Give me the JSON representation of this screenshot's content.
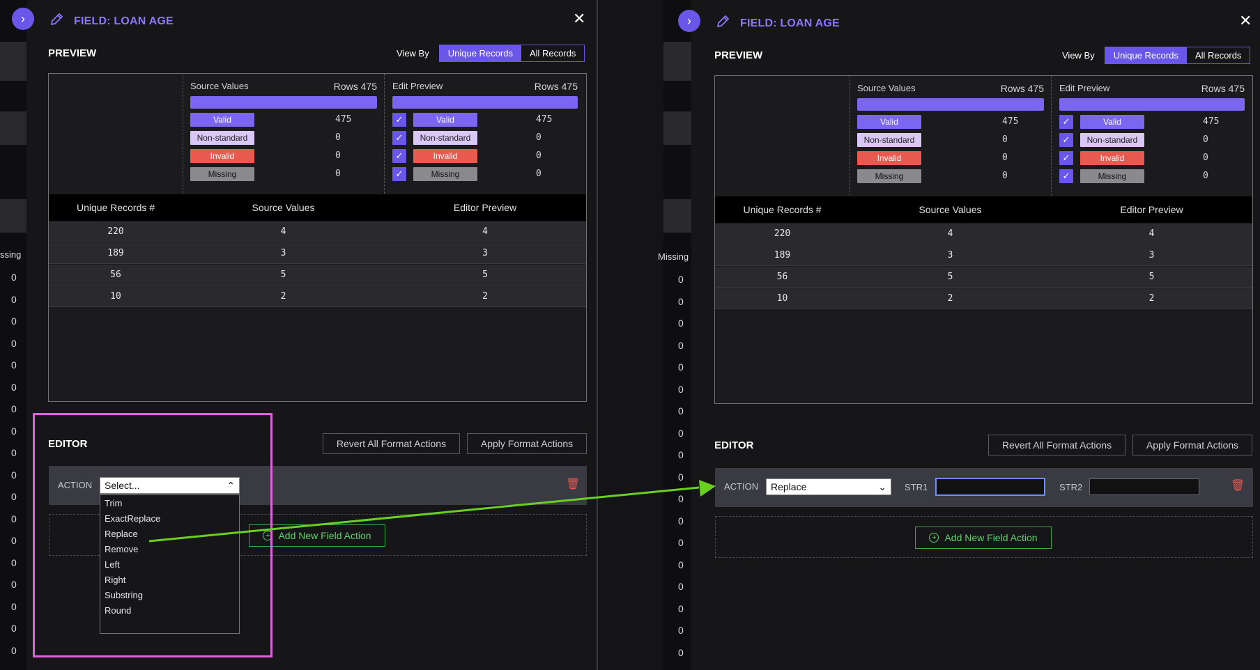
{
  "left": {
    "field_title": "FIELD: LOAN AGE",
    "preview_label": "PREVIEW",
    "view_by_label": "View By",
    "view_unique": "Unique Records",
    "view_all": "All Records",
    "source_label": "Source Values",
    "source_rows": "Rows 475",
    "edit_label": "Edit Preview",
    "edit_rows": "Rows 475",
    "stats": [
      {
        "label": "Valid",
        "count": "475"
      },
      {
        "label": "Non-standard",
        "count": "0"
      },
      {
        "label": "Invalid",
        "count": "0"
      },
      {
        "label": "Missing",
        "count": "0"
      }
    ],
    "table_headers": [
      "Unique Records #",
      "Source Values",
      "Editor Preview"
    ],
    "table_rows": [
      [
        "220",
        "4",
        "4"
      ],
      [
        "189",
        "3",
        "3"
      ],
      [
        "56",
        "5",
        "5"
      ],
      [
        "10",
        "2",
        "2"
      ]
    ],
    "editor_label": "EDITOR",
    "revert_label": "Revert All Format Actions",
    "apply_label": "Apply Format Actions",
    "action_label": "ACTION",
    "select_value": "Select...",
    "options": [
      "Trim",
      "ExactReplace",
      "Replace",
      "Remove",
      "Left",
      "Right",
      "Substring",
      "Round"
    ],
    "add_label": "Add New Field Action",
    "bg_missing": "ssing"
  },
  "right": {
    "field_title": "FIELD: LOAN AGE",
    "preview_label": "PREVIEW",
    "view_by_label": "View By",
    "view_unique": "Unique Records",
    "view_all": "All Records",
    "source_label": "Source Values",
    "source_rows": "Rows 475",
    "edit_label": "Edit Preview",
    "edit_rows": "Rows 475",
    "stats": [
      {
        "label": "Valid",
        "count": "475"
      },
      {
        "label": "Non-standard",
        "count": "0"
      },
      {
        "label": "Invalid",
        "count": "0"
      },
      {
        "label": "Missing",
        "count": "0"
      }
    ],
    "table_headers": [
      "Unique Records #",
      "Source Values",
      "Editor Preview"
    ],
    "table_rows": [
      [
        "220",
        "4",
        "4"
      ],
      [
        "189",
        "3",
        "3"
      ],
      [
        "56",
        "5",
        "5"
      ],
      [
        "10",
        "2",
        "2"
      ]
    ],
    "editor_label": "EDITOR",
    "revert_label": "Revert All Format Actions",
    "apply_label": "Apply Format Actions",
    "action_label": "ACTION",
    "select_value": "Replace",
    "str1_label": "STR1",
    "str2_label": "STR2",
    "add_label": "Add New Field Action",
    "bg_missing": "Missing"
  },
  "background_zero": "0",
  "colors": {
    "accent": "#6a57ea",
    "invalid": "#e85a50",
    "nonstandard": "#d9c8f5",
    "missing": "#8a8a8e",
    "add_green": "#5fd06a",
    "highlight": "#e060e0",
    "arrow": "#6ad020"
  },
  "icons": [
    "chevron-right-icon",
    "pencil-icon",
    "close-icon",
    "check-icon",
    "trash-icon",
    "plus-circle-icon",
    "chevron-up-icon",
    "chevron-down-icon",
    "arrow-icon"
  ]
}
